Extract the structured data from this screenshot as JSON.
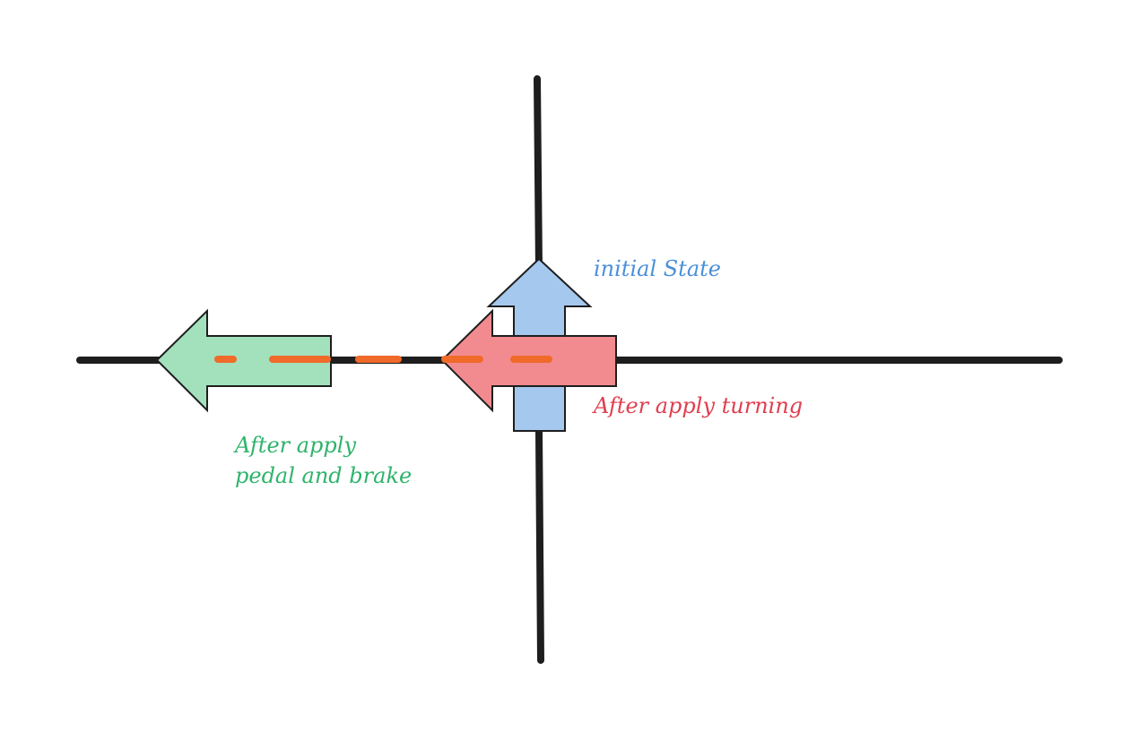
{
  "diagram": {
    "labels": {
      "initial_state": "initial State",
      "after_turning": "After apply turning",
      "after_pedal_line1": "After apply",
      "after_pedal_line2": "pedal and brake"
    },
    "colors": {
      "axis": "#1e1e1e",
      "initial_fill": "#a5c8ee",
      "initial_text": "#4a90d9",
      "turning_fill": "#f28b8f",
      "turning_text": "#e03e4f",
      "pedal_fill": "#a3e1bd",
      "pedal_text": "#2fb36b",
      "path_dash": "#f06a2a",
      "outline": "#1e1e1e"
    }
  }
}
